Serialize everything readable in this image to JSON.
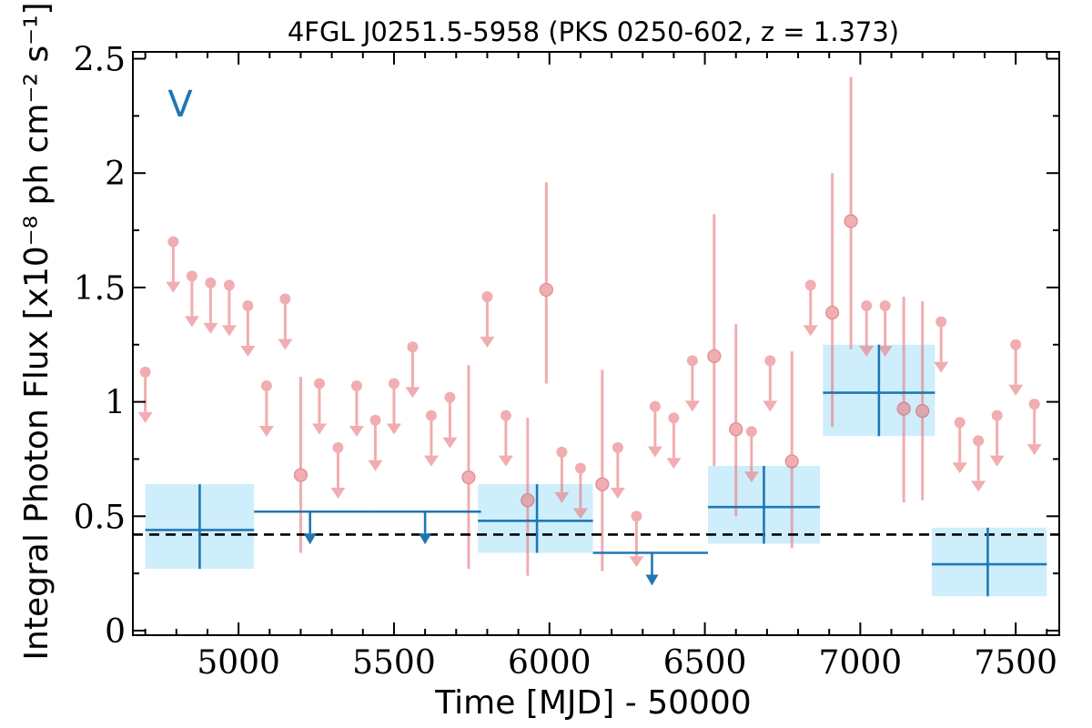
{
  "chart_data": {
    "type": "scatter",
    "title": "4FGL J0251.5-5958 (PKS 0250-602, z = 1.373)",
    "panel_label": "V",
    "xlabel": "Time [MJD] - 50000",
    "ylabel": "Integral Photon Flux [x10⁻⁸ ph cm⁻² s⁻¹]",
    "xlim": [
      4660,
      7640
    ],
    "ylim": [
      -0.02,
      2.53
    ],
    "xticks": [
      5000,
      5500,
      6000,
      6500,
      7000,
      7500
    ],
    "xtick_labels": [
      "5000",
      "5500",
      "6000",
      "6500",
      "7000",
      "7500"
    ],
    "yticks": [
      0,
      0.5,
      1,
      1.5,
      2,
      2.5
    ],
    "ytick_labels": [
      "0",
      "0.5",
      "1",
      "1.5",
      "2",
      "2.5"
    ],
    "reference_line": {
      "y": 0.42,
      "style": "dashed"
    },
    "colors": {
      "fine": "#e8787c",
      "coarse": "#1f77b4",
      "coarse_band": "#cfeefc"
    },
    "series": [
      {
        "kind": "fine-bin upper limits",
        "x": [
          4700,
          4790,
          4850,
          4910,
          4970,
          5030,
          5090,
          5150,
          5260,
          5320,
          5380,
          5440,
          5500,
          5560,
          5620,
          5680,
          5800,
          5860,
          6040,
          6100,
          6220,
          6280,
          6340,
          6400,
          6460,
          6650,
          6710,
          6840,
          7020,
          7080,
          7260,
          7320,
          7380,
          7440,
          7500,
          7560
        ],
        "y": [
          1.13,
          1.7,
          1.55,
          1.52,
          1.51,
          1.42,
          1.07,
          1.45,
          1.08,
          0.8,
          1.07,
          0.92,
          1.08,
          1.24,
          0.94,
          1.02,
          1.46,
          0.94,
          0.78,
          0.71,
          0.8,
          0.5,
          0.98,
          0.93,
          1.18,
          0.87,
          1.18,
          1.51,
          1.42,
          1.42,
          1.35,
          0.91,
          0.83,
          0.94,
          1.25,
          0.99
        ]
      },
      {
        "kind": "fine-bin detections",
        "x": [
          5200,
          5740,
          5930,
          5990,
          6170,
          6530,
          6600,
          6780,
          6910,
          6970,
          7140,
          7200
        ],
        "y": [
          0.68,
          0.67,
          0.57,
          1.49,
          0.64,
          1.2,
          0.88,
          0.74,
          1.39,
          1.79,
          0.97,
          0.96
        ],
        "y_low": [
          0.34,
          0.27,
          0.24,
          1.08,
          0.26,
          0.72,
          0.5,
          0.36,
          0.89,
          1.23,
          0.56,
          0.57
        ],
        "y_high": [
          1.11,
          1.16,
          0.93,
          1.96,
          1.14,
          1.82,
          1.34,
          1.22,
          2.0,
          2.42,
          1.46,
          1.44
        ]
      },
      {
        "kind": "coarse-bin detections",
        "x": [
          4875,
          5960,
          6690,
          7060,
          7410
        ],
        "x_low": [
          4700,
          5770,
          6510,
          6880,
          7230
        ],
        "x_high": [
          5050,
          6140,
          6870,
          7240,
          7600
        ],
        "y": [
          0.44,
          0.48,
          0.54,
          1.04,
          0.29
        ],
        "y_low": [
          0.27,
          0.34,
          0.38,
          0.85,
          0.15
        ],
        "y_high": [
          0.64,
          0.64,
          0.72,
          1.25,
          0.45
        ]
      },
      {
        "kind": "coarse-bin upper limits",
        "x_low": [
          5050,
          5420,
          6140
        ],
        "x_high": [
          5420,
          5780,
          6510
        ],
        "y": [
          0.52,
          0.52,
          0.34
        ],
        "arrow_x": [
          5230,
          5600,
          6330
        ]
      }
    ]
  }
}
